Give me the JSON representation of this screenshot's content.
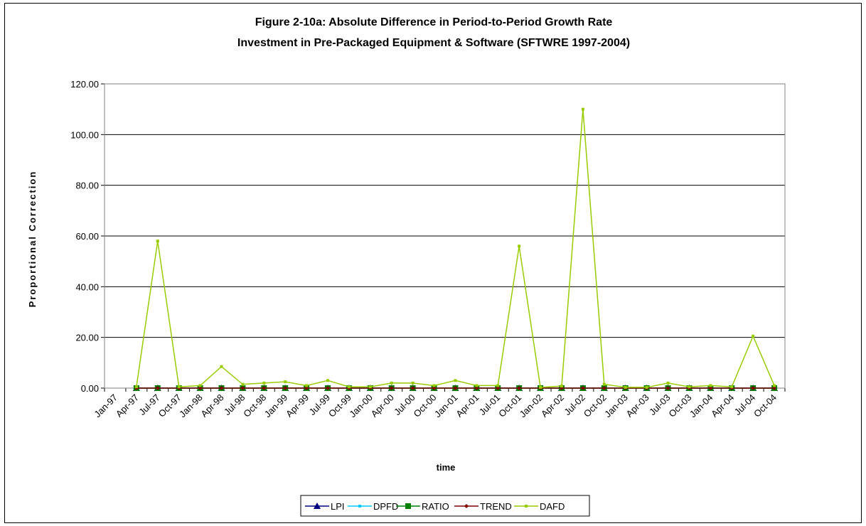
{
  "chart_data": {
    "type": "line",
    "title": "Figure 2-10a: Absolute Difference in Period-to-Period Growth Rate",
    "subtitle": "Investment in Pre-Packaged Equipment & Software (SFTWRE 1997-2004)",
    "xlabel": "time",
    "ylabel": "Proportional Correction",
    "ylim": [
      0,
      120
    ],
    "yticks": [
      "0.00",
      "20.00",
      "40.00",
      "60.00",
      "80.00",
      "100.00",
      "120.00"
    ],
    "grid": true,
    "legend_position": "bottom",
    "x": [
      "Jan-97",
      "Apr-97",
      "Jul-97",
      "Oct-97",
      "Jan-98",
      "Apr-98",
      "Jul-98",
      "Oct-98",
      "Jan-99",
      "Apr-99",
      "Jul-99",
      "Oct-99",
      "Jan-00",
      "Apr-00",
      "Jul-00",
      "Oct-00",
      "Jan-01",
      "Apr-01",
      "Jul-01",
      "Oct-01",
      "Jan-02",
      "Apr-02",
      "Jul-02",
      "Oct-02",
      "Jan-03",
      "Apr-03",
      "Jul-03",
      "Oct-03",
      "Jan-04",
      "Apr-04",
      "Jul-04",
      "Oct-04"
    ],
    "xticks_shown": [
      "Jan-97",
      "Apr-97",
      "Jul-97",
      "Oct-97",
      "Jan-98",
      "Apr-98",
      "Jul-98",
      "Oct-98",
      "Jan-99",
      "Apr-99",
      "Jul-99",
      "Oct-99",
      "Jan-00",
      "Apr-00",
      "Jul-00",
      "Oct-00",
      "Jan-01",
      "Apr-01",
      "Jul-01",
      "Oct-01",
      "Jan-02",
      "Apr-02",
      "Jul-02",
      "Oct-02",
      "Jan-03",
      "Apr-03",
      "Jul-03",
      "Oct-03",
      "Jan-04",
      "Apr-04",
      "Jul-04",
      "Oct-04"
    ],
    "series": [
      {
        "name": "LPI",
        "color": "#000080",
        "marker": "triangle",
        "values": [
          null,
          0,
          0,
          0,
          0,
          0,
          0,
          0,
          0,
          0,
          0,
          0,
          0,
          0,
          0,
          0,
          0,
          0,
          0,
          0,
          0,
          0,
          0,
          0,
          0,
          0,
          0,
          0,
          0,
          0,
          0,
          0
        ]
      },
      {
        "name": "DPFD",
        "color": "#00ccff",
        "marker": "dot",
        "values": [
          null,
          0,
          0,
          0,
          0,
          0,
          0,
          0,
          0,
          0,
          0,
          0,
          0,
          0,
          0,
          0,
          0,
          0,
          0,
          0,
          0,
          0,
          0,
          0,
          0,
          0,
          0,
          0,
          0,
          0,
          0,
          0
        ]
      },
      {
        "name": "RATIO",
        "color": "#008000",
        "marker": "square",
        "values": [
          null,
          0,
          0,
          0,
          0,
          0,
          0,
          0,
          0,
          0,
          0,
          0,
          0,
          0,
          0,
          0,
          0,
          0,
          0,
          0,
          0,
          0,
          0,
          0,
          0,
          0,
          0,
          0,
          0,
          0,
          0,
          0
        ]
      },
      {
        "name": "TREND",
        "color": "#800000",
        "marker": "diamond",
        "values": [
          null,
          0,
          0,
          0,
          0,
          0,
          0,
          0,
          0,
          0,
          0,
          0,
          0,
          0,
          0,
          0,
          0,
          0,
          0,
          0,
          0,
          0,
          0,
          0,
          0,
          0,
          0,
          0,
          0,
          0,
          0,
          0
        ]
      },
      {
        "name": "DAFD",
        "color": "#99cc00",
        "marker": "dot",
        "values": [
          null,
          0.5,
          58,
          0.5,
          1,
          8.5,
          1.5,
          2,
          2.5,
          1,
          3,
          0.5,
          0.5,
          2,
          2,
          1,
          3,
          1,
          1,
          56,
          0.3,
          0.8,
          110,
          1.5,
          0.3,
          0.3,
          2,
          0.5,
          1,
          0.5,
          20.5,
          1
        ]
      }
    ]
  }
}
